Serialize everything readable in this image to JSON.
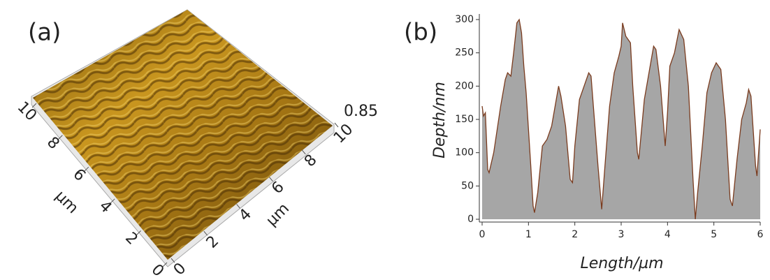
{
  "chart_data": [
    {
      "type": "surface3d",
      "label": "(a)",
      "xlim": [
        0,
        10
      ],
      "xticks": [
        0,
        2,
        4,
        6,
        8,
        10
      ],
      "xlabel": "µm",
      "ylim": [
        0,
        10
      ],
      "yticks": [
        0,
        2,
        4,
        6,
        8,
        10
      ],
      "ylabel": "µm",
      "zticks": [
        0.85
      ]
    },
    {
      "type": "area",
      "label": "(b)",
      "xlabel": "Length/µm",
      "ylabel": "Depth/nm",
      "color": "#a6a6a6",
      "line_color": "#7a3b1e",
      "xlim": [
        0,
        6
      ],
      "xticks": [
        0,
        1,
        2,
        3,
        4,
        5,
        6
      ],
      "ylim": [
        0,
        300
      ],
      "yticks": [
        0,
        50,
        100,
        150,
        200,
        250,
        300
      ],
      "x": [
        0,
        0.03,
        0.07,
        0.12,
        0.15,
        0.25,
        0.4,
        0.5,
        0.55,
        0.62,
        0.68,
        0.75,
        0.8,
        0.85,
        0.9,
        0.95,
        1.05,
        1.1,
        1.13,
        1.2,
        1.3,
        1.4,
        1.5,
        1.6,
        1.65,
        1.7,
        1.8,
        1.9,
        1.95,
        2.0,
        2.1,
        2.2,
        2.3,
        2.35,
        2.4,
        2.5,
        2.58,
        2.65,
        2.75,
        2.85,
        2.95,
        3.0,
        3.03,
        3.1,
        3.2,
        3.25,
        3.35,
        3.38,
        3.5,
        3.6,
        3.7,
        3.75,
        3.85,
        3.95,
        4.0,
        4.05,
        4.15,
        4.25,
        4.35,
        4.45,
        4.55,
        4.6,
        4.65,
        4.75,
        4.85,
        4.95,
        5.05,
        5.15,
        5.25,
        5.35,
        5.4,
        5.5,
        5.6,
        5.7,
        5.75,
        5.8,
        5.9,
        5.93,
        6.0
      ],
      "values": [
        170,
        155,
        160,
        75,
        70,
        100,
        170,
        210,
        220,
        215,
        250,
        295,
        300,
        280,
        230,
        190,
        80,
        20,
        10,
        40,
        110,
        120,
        140,
        180,
        200,
        185,
        140,
        60,
        55,
        110,
        180,
        200,
        220,
        215,
        170,
        80,
        15,
        80,
        170,
        220,
        245,
        260,
        295,
        275,
        265,
        200,
        100,
        90,
        180,
        220,
        260,
        255,
        200,
        110,
        160,
        230,
        250,
        285,
        270,
        200,
        60,
        0,
        40,
        110,
        190,
        220,
        235,
        225,
        150,
        30,
        20,
        90,
        150,
        175,
        195,
        185,
        80,
        65,
        135
      ]
    }
  ]
}
